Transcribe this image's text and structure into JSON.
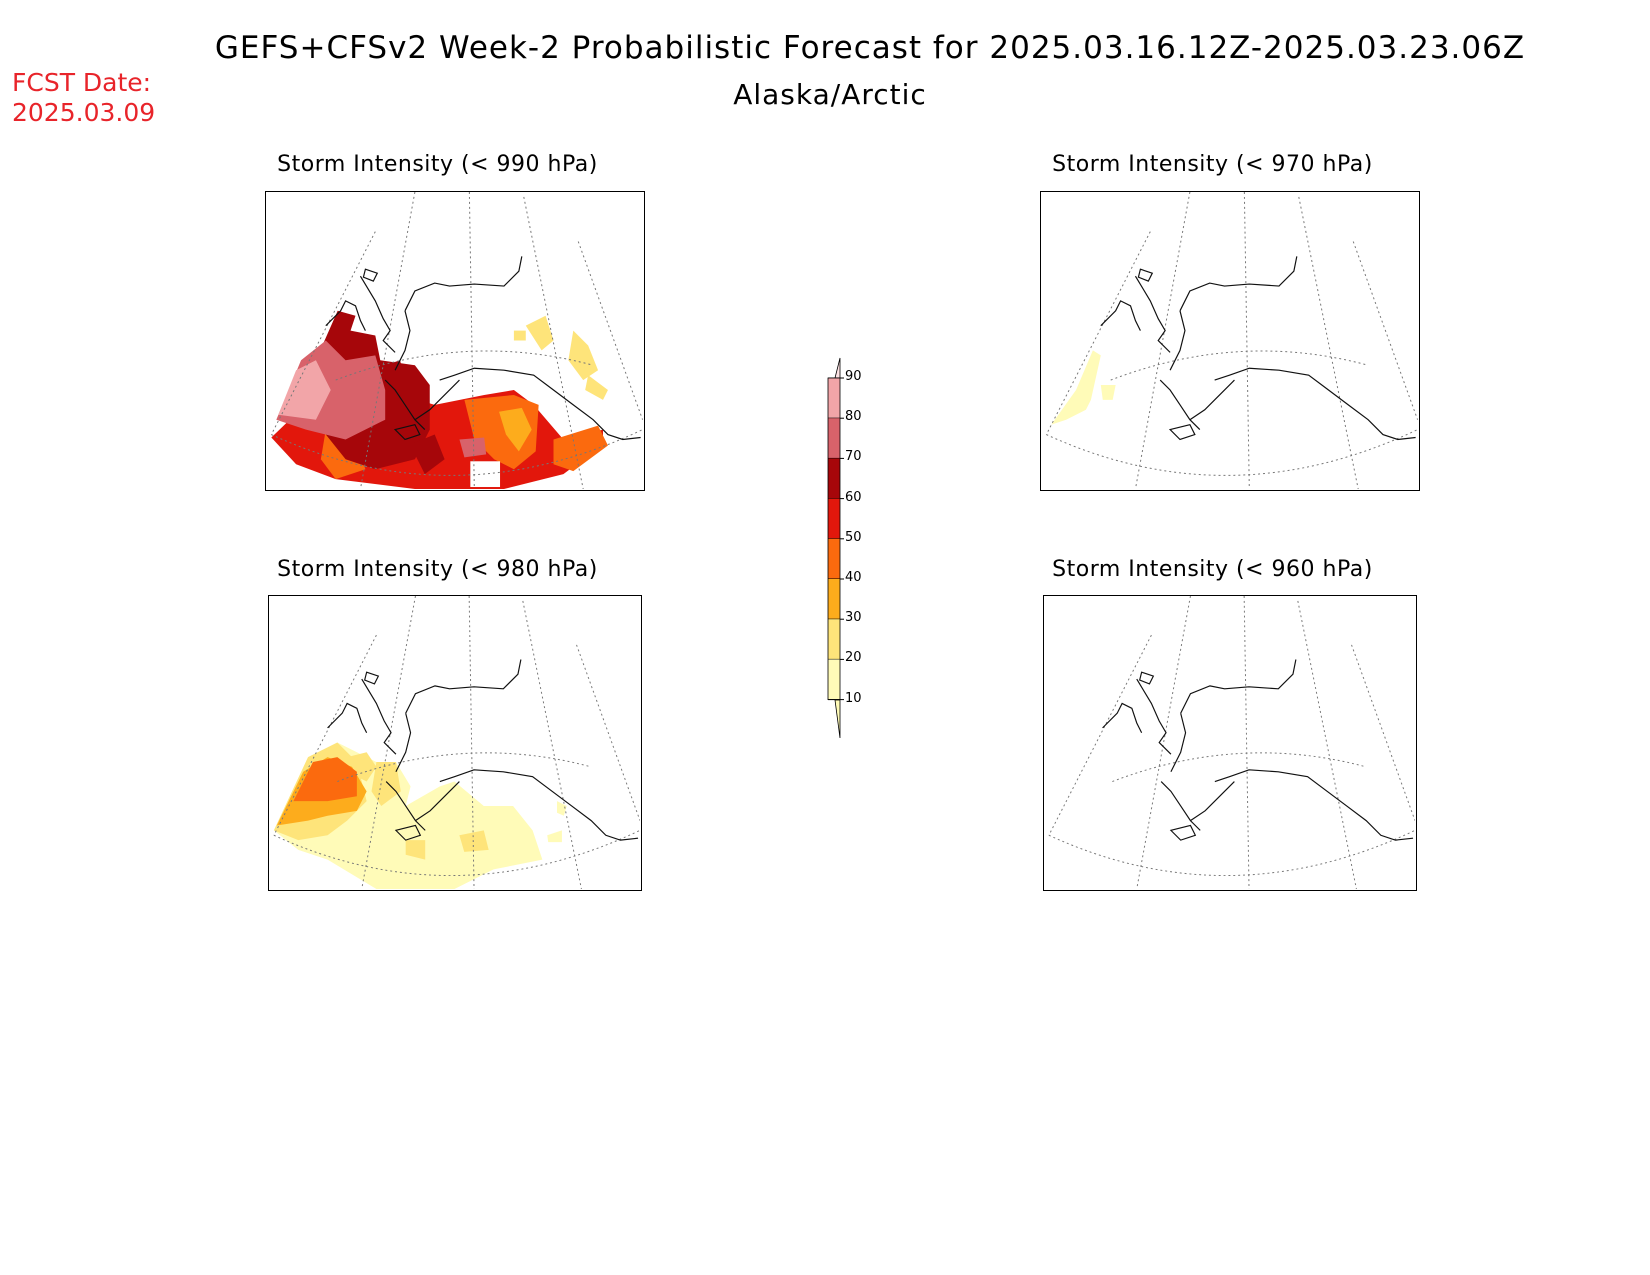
{
  "header": {
    "title": "GEFS+CFSv2 Week-2 Probabilistic Forecast for 2025.03.16.12Z-2025.03.23.06Z",
    "subtitle": "Alaska/Arctic",
    "fcst_date_label": "FCST Date:",
    "fcst_date_value": "2025.03.09"
  },
  "panels": [
    {
      "id": "p990",
      "title": "Storm Intensity (< 990 hPa)"
    },
    {
      "id": "p970",
      "title": "Storm Intensity (< 970 hPa)"
    },
    {
      "id": "p980",
      "title": "Storm Intensity (< 980 hPa)"
    },
    {
      "id": "p960",
      "title": "Storm Intensity (< 960 hPa)"
    }
  ],
  "colorbar": {
    "levels": [
      "90",
      "80",
      "70",
      "60",
      "50",
      "40",
      "30",
      "20",
      "10"
    ],
    "colors": {
      "10": "#fffbb8",
      "20": "#fee47a",
      "30": "#fdac1c",
      "40": "#fb6a0e",
      "50": "#e2170c",
      "60": "#a6060a",
      "70": "#d8626a",
      "80": "#f2a5a8",
      "90": "#fde2e4"
    }
  }
}
